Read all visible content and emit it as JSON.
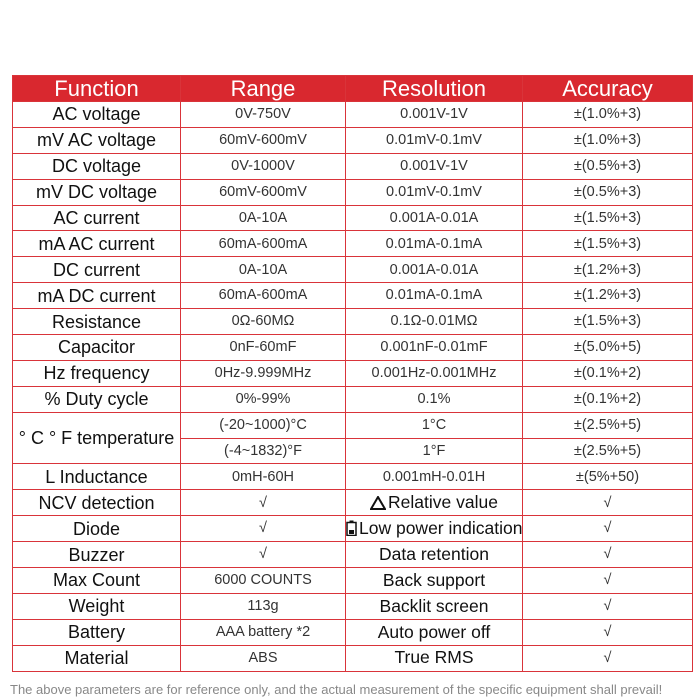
{
  "table": {
    "header": [
      "Function",
      "Range",
      "Resolution",
      "Accuracy"
    ],
    "rows": [
      [
        "AC voltage",
        "0V-750V",
        "0.001V-1V",
        "±(1.0%+3)"
      ],
      [
        "mV AC voltage",
        "60mV-600mV",
        "0.01mV-0.1mV",
        "±(1.0%+3)"
      ],
      [
        "DC voltage",
        "0V-1000V",
        "0.001V-1V",
        "±(0.5%+3)"
      ],
      [
        "mV DC voltage",
        "60mV-600mV",
        "0.01mV-0.1mV",
        "±(0.5%+3)"
      ],
      [
        "AC current",
        "0A-10A",
        "0.001A-0.01A",
        "±(1.5%+3)"
      ],
      [
        "mA AC current",
        "60mA-600mA",
        "0.01mA-0.1mA",
        "±(1.5%+3)"
      ],
      [
        "DC current",
        "0A-10A",
        "0.001A-0.01A",
        "±(1.2%+3)"
      ],
      [
        "mA DC current",
        "60mA-600mA",
        "0.01mA-0.1mA",
        "±(1.2%+3)"
      ],
      [
        "Resistance",
        "0Ω-60MΩ",
        "0.1Ω-0.01MΩ",
        "±(1.5%+3)"
      ],
      [
        "Capacitor",
        "0nF-60mF",
        "0.001nF-0.01mF",
        "±(5.0%+5)"
      ],
      [
        "Hz frequency",
        "0Hz-9.999MHz",
        "0.001Hz-0.001MHz",
        "±(0.1%+2)"
      ],
      [
        "% Duty cycle",
        "0%-99%",
        "0.1%",
        "±(0.1%+2)"
      ],
      [
        "° C ° F temperature",
        "(-20~1000)°C",
        "1°C",
        "±(2.5%+5)"
      ],
      [
        "(-4~1832)°F",
        "1°F",
        "±(2.5%+5)"
      ],
      [
        "L Inductance",
        "0mH-60H",
        "0.001mH-0.01H",
        "±(5%+50)"
      ],
      [
        "NCV detection",
        "√",
        "Relative value",
        "√"
      ],
      [
        "Diode",
        "√",
        "Low power indication",
        "√"
      ],
      [
        "Buzzer",
        "√",
        "Data retention",
        "√"
      ],
      [
        "Max Count",
        "6000 COUNTS",
        "Back support",
        "√"
      ],
      [
        "Weight",
        "113g",
        "Backlit screen",
        "√"
      ],
      [
        "Battery",
        "AAA battery *2",
        "Auto power off",
        "√"
      ],
      [
        "Material",
        "ABS",
        "True RMS",
        "√"
      ]
    ]
  },
  "footer": {
    "note": "The above parameters are for reference only, and the actual measurement of the specific equipment shall prevail!"
  }
}
